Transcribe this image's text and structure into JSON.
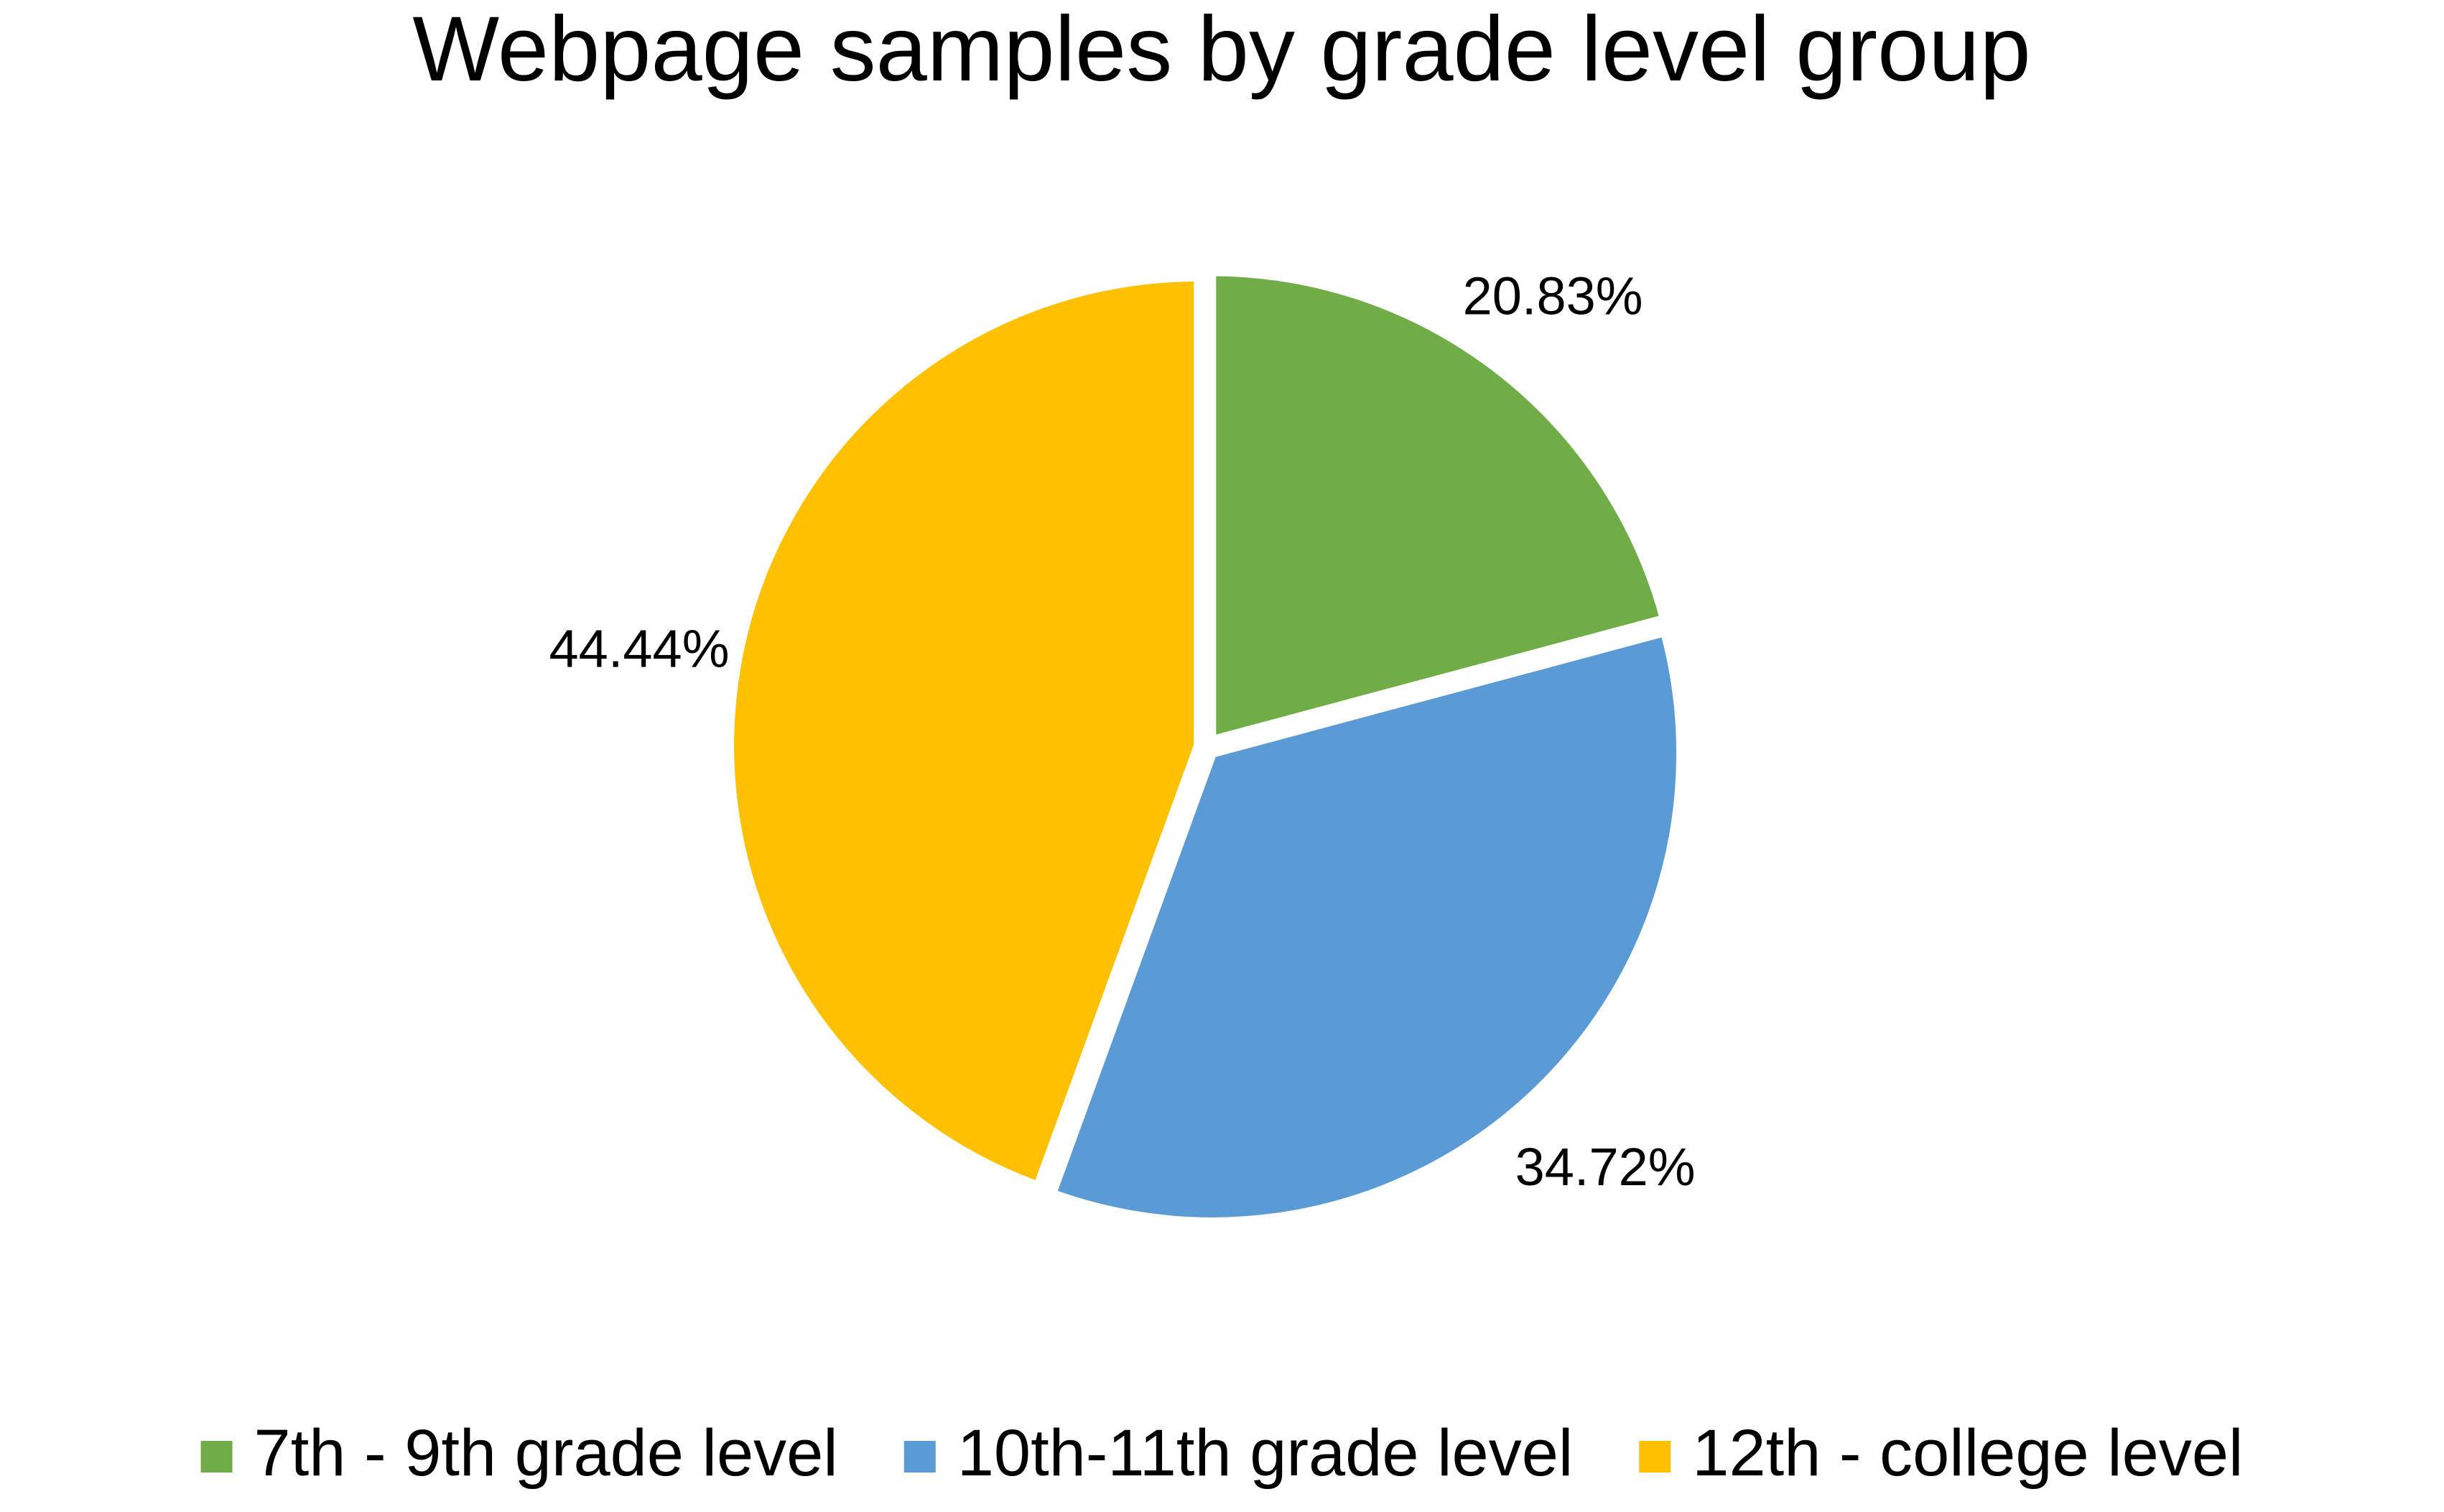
{
  "chart_data": {
    "type": "pie",
    "title": "Webpage samples by grade level group",
    "slices": [
      {
        "label": "7th - 9th grade level",
        "value": 20.83,
        "value_label": "20.83%",
        "color": "#70AD47"
      },
      {
        "label": "10th-11th grade level",
        "value": 34.72,
        "value_label": "34.72%",
        "color": "#5B9BD5"
      },
      {
        "label": "12th - college level",
        "value": 44.44,
        "value_label": "44.44%",
        "color": "#FFC000"
      }
    ],
    "start_angle": "12 o'clock, clockwise",
    "exploded": true,
    "legend_position": "bottom"
  }
}
